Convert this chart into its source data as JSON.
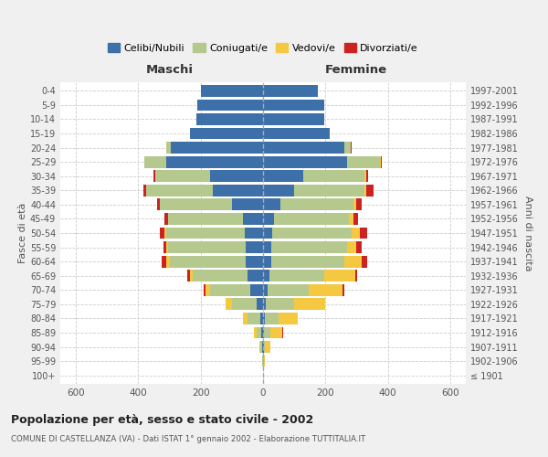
{
  "age_groups": [
    "100+",
    "95-99",
    "90-94",
    "85-89",
    "80-84",
    "75-79",
    "70-74",
    "65-69",
    "60-64",
    "55-59",
    "50-54",
    "45-49",
    "40-44",
    "35-39",
    "30-34",
    "25-29",
    "20-24",
    "15-19",
    "10-14",
    "5-9",
    "0-4"
  ],
  "birth_years": [
    "≤ 1901",
    "1902-1906",
    "1907-1911",
    "1912-1916",
    "1917-1921",
    "1922-1926",
    "1927-1931",
    "1932-1936",
    "1937-1941",
    "1942-1946",
    "1947-1951",
    "1952-1956",
    "1957-1961",
    "1962-1966",
    "1967-1971",
    "1972-1976",
    "1977-1981",
    "1982-1986",
    "1987-1991",
    "1992-1996",
    "1997-2001"
  ],
  "colors": {
    "celibi": "#3d6fa8",
    "coniugati": "#b5c98e",
    "vedovi": "#f5c842",
    "divorziati": "#cc2222"
  },
  "maschi": {
    "celibi": [
      0,
      1,
      3,
      5,
      10,
      20,
      40,
      50,
      55,
      55,
      60,
      65,
      100,
      160,
      170,
      310,
      295,
      235,
      215,
      210,
      200
    ],
    "coniugati": [
      0,
      1,
      5,
      15,
      40,
      80,
      130,
      175,
      245,
      250,
      250,
      240,
      230,
      215,
      175,
      70,
      15,
      0,
      0,
      0,
      0
    ],
    "vedovi": [
      0,
      1,
      5,
      10,
      15,
      20,
      15,
      10,
      10,
      5,
      5,
      0,
      0,
      0,
      0,
      0,
      0,
      0,
      0,
      0,
      0
    ],
    "divorziati": [
      0,
      0,
      0,
      0,
      0,
      0,
      5,
      8,
      15,
      8,
      15,
      12,
      10,
      8,
      5,
      2,
      0,
      0,
      0,
      0,
      0
    ]
  },
  "femmine": {
    "nubili": [
      0,
      1,
      2,
      2,
      5,
      10,
      15,
      20,
      25,
      25,
      30,
      35,
      55,
      100,
      130,
      270,
      260,
      215,
      195,
      195,
      175
    ],
    "coniugate": [
      0,
      2,
      5,
      20,
      45,
      90,
      130,
      175,
      235,
      245,
      255,
      240,
      235,
      225,
      195,
      105,
      20,
      0,
      0,
      0,
      0
    ],
    "vedove": [
      0,
      2,
      15,
      40,
      60,
      100,
      110,
      100,
      55,
      30,
      25,
      15,
      10,
      5,
      5,
      2,
      2,
      0,
      0,
      0,
      0
    ],
    "divorziate": [
      0,
      0,
      0,
      1,
      0,
      0,
      5,
      8,
      20,
      15,
      25,
      15,
      15,
      25,
      8,
      5,
      2,
      0,
      0,
      0,
      0
    ]
  },
  "xlim": 650,
  "title": "Popolazione per età, sesso e stato civile - 2002",
  "subtitle": "COMUNE DI CASTELLANZA (VA) - Dati ISTAT 1° gennaio 2002 - Elaborazione TUTTITALIA.IT",
  "ylabel_left": "Fasce di età",
  "ylabel_right": "Anni di nascita",
  "legend_labels": [
    "Celibi/Nubili",
    "Coniugati/e",
    "Vedovi/e",
    "Divorziati/e"
  ],
  "header_maschi": "Maschi",
  "header_femmine": "Femmine",
  "bg_color": "#f0f0f0",
  "plot_bg": "#ffffff",
  "grid_color": "#cccccc"
}
